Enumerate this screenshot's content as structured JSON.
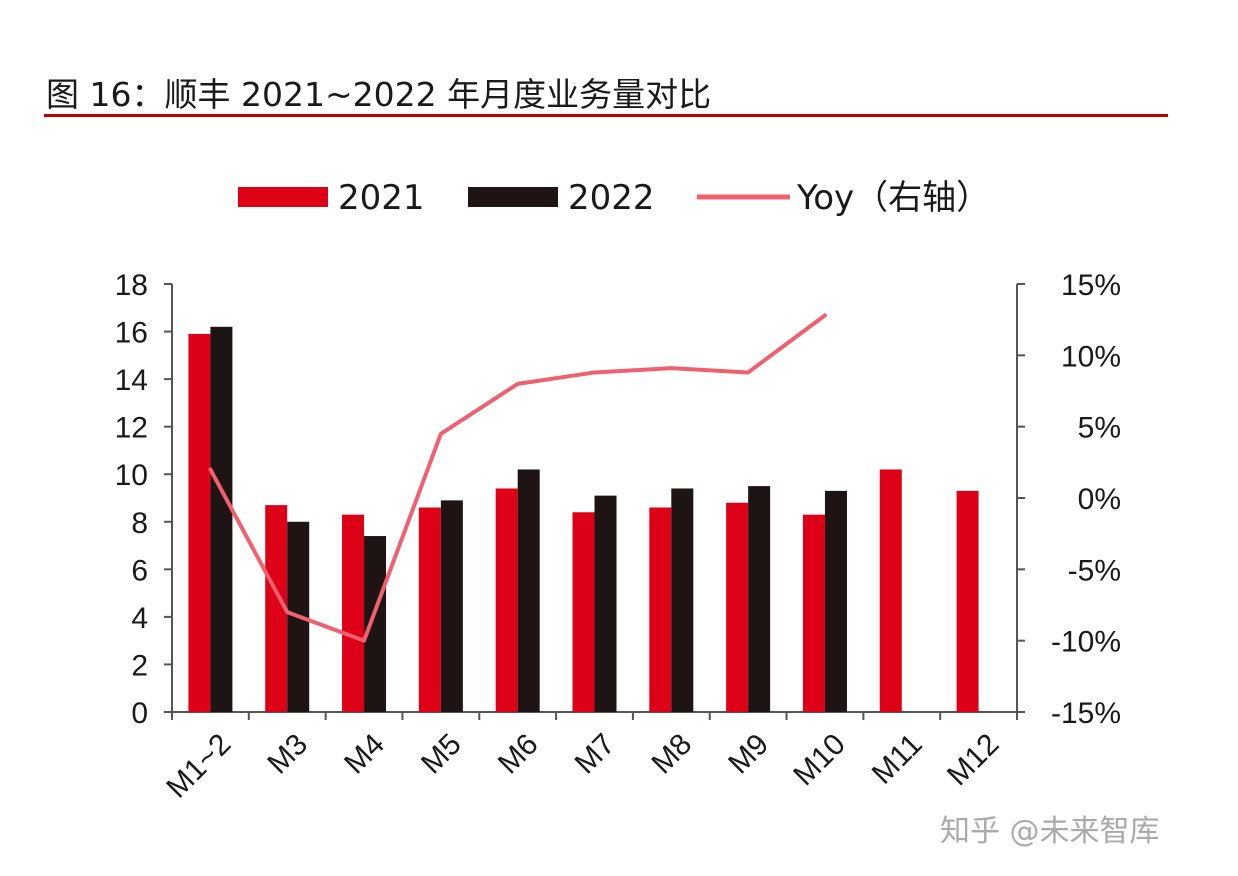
{
  "title": "图 16：顺丰 2021~2022 年月度业务量对比",
  "watermark": "知乎 @未来智库",
  "colors": {
    "s2021": "#dd0016",
    "s2022": "#1e1413",
    "yoy": "#f0606e",
    "axis": "#555555",
    "title_rule": "#c00000"
  },
  "chart_data": {
    "type": "bar",
    "title": "图 16：顺丰 2021~2022 年月度业务量对比",
    "categories": [
      "M1~2",
      "M3",
      "M4",
      "M5",
      "M6",
      "M7",
      "M8",
      "M9",
      "M10",
      "M11",
      "M12"
    ],
    "series": [
      {
        "name": "2021",
        "type": "bar",
        "axis": "left",
        "values": [
          15.9,
          8.7,
          8.3,
          8.6,
          9.4,
          8.4,
          8.6,
          8.8,
          8.3,
          10.2,
          9.3
        ]
      },
      {
        "name": "2022",
        "type": "bar",
        "axis": "left",
        "values": [
          16.2,
          8.0,
          7.4,
          8.9,
          10.2,
          9.1,
          9.4,
          9.5,
          9.3,
          null,
          null
        ]
      },
      {
        "name": "Yoy（右轴）",
        "type": "line",
        "axis": "right",
        "values": [
          2.0,
          -8.0,
          -10.0,
          4.5,
          8.0,
          8.8,
          9.1,
          8.8,
          12.8,
          null,
          null
        ]
      }
    ],
    "left_axis": {
      "min": 0,
      "max": 18,
      "step": 2,
      "ticks": [
        "0",
        "2",
        "4",
        "6",
        "8",
        "10",
        "12",
        "14",
        "16",
        "18"
      ]
    },
    "right_axis": {
      "min": -15,
      "max": 15,
      "step": 5,
      "ticks": [
        "-15%",
        "-10%",
        "-5%",
        "0%",
        "5%",
        "10%",
        "15%"
      ]
    },
    "grid": false,
    "legend_position": "top"
  }
}
